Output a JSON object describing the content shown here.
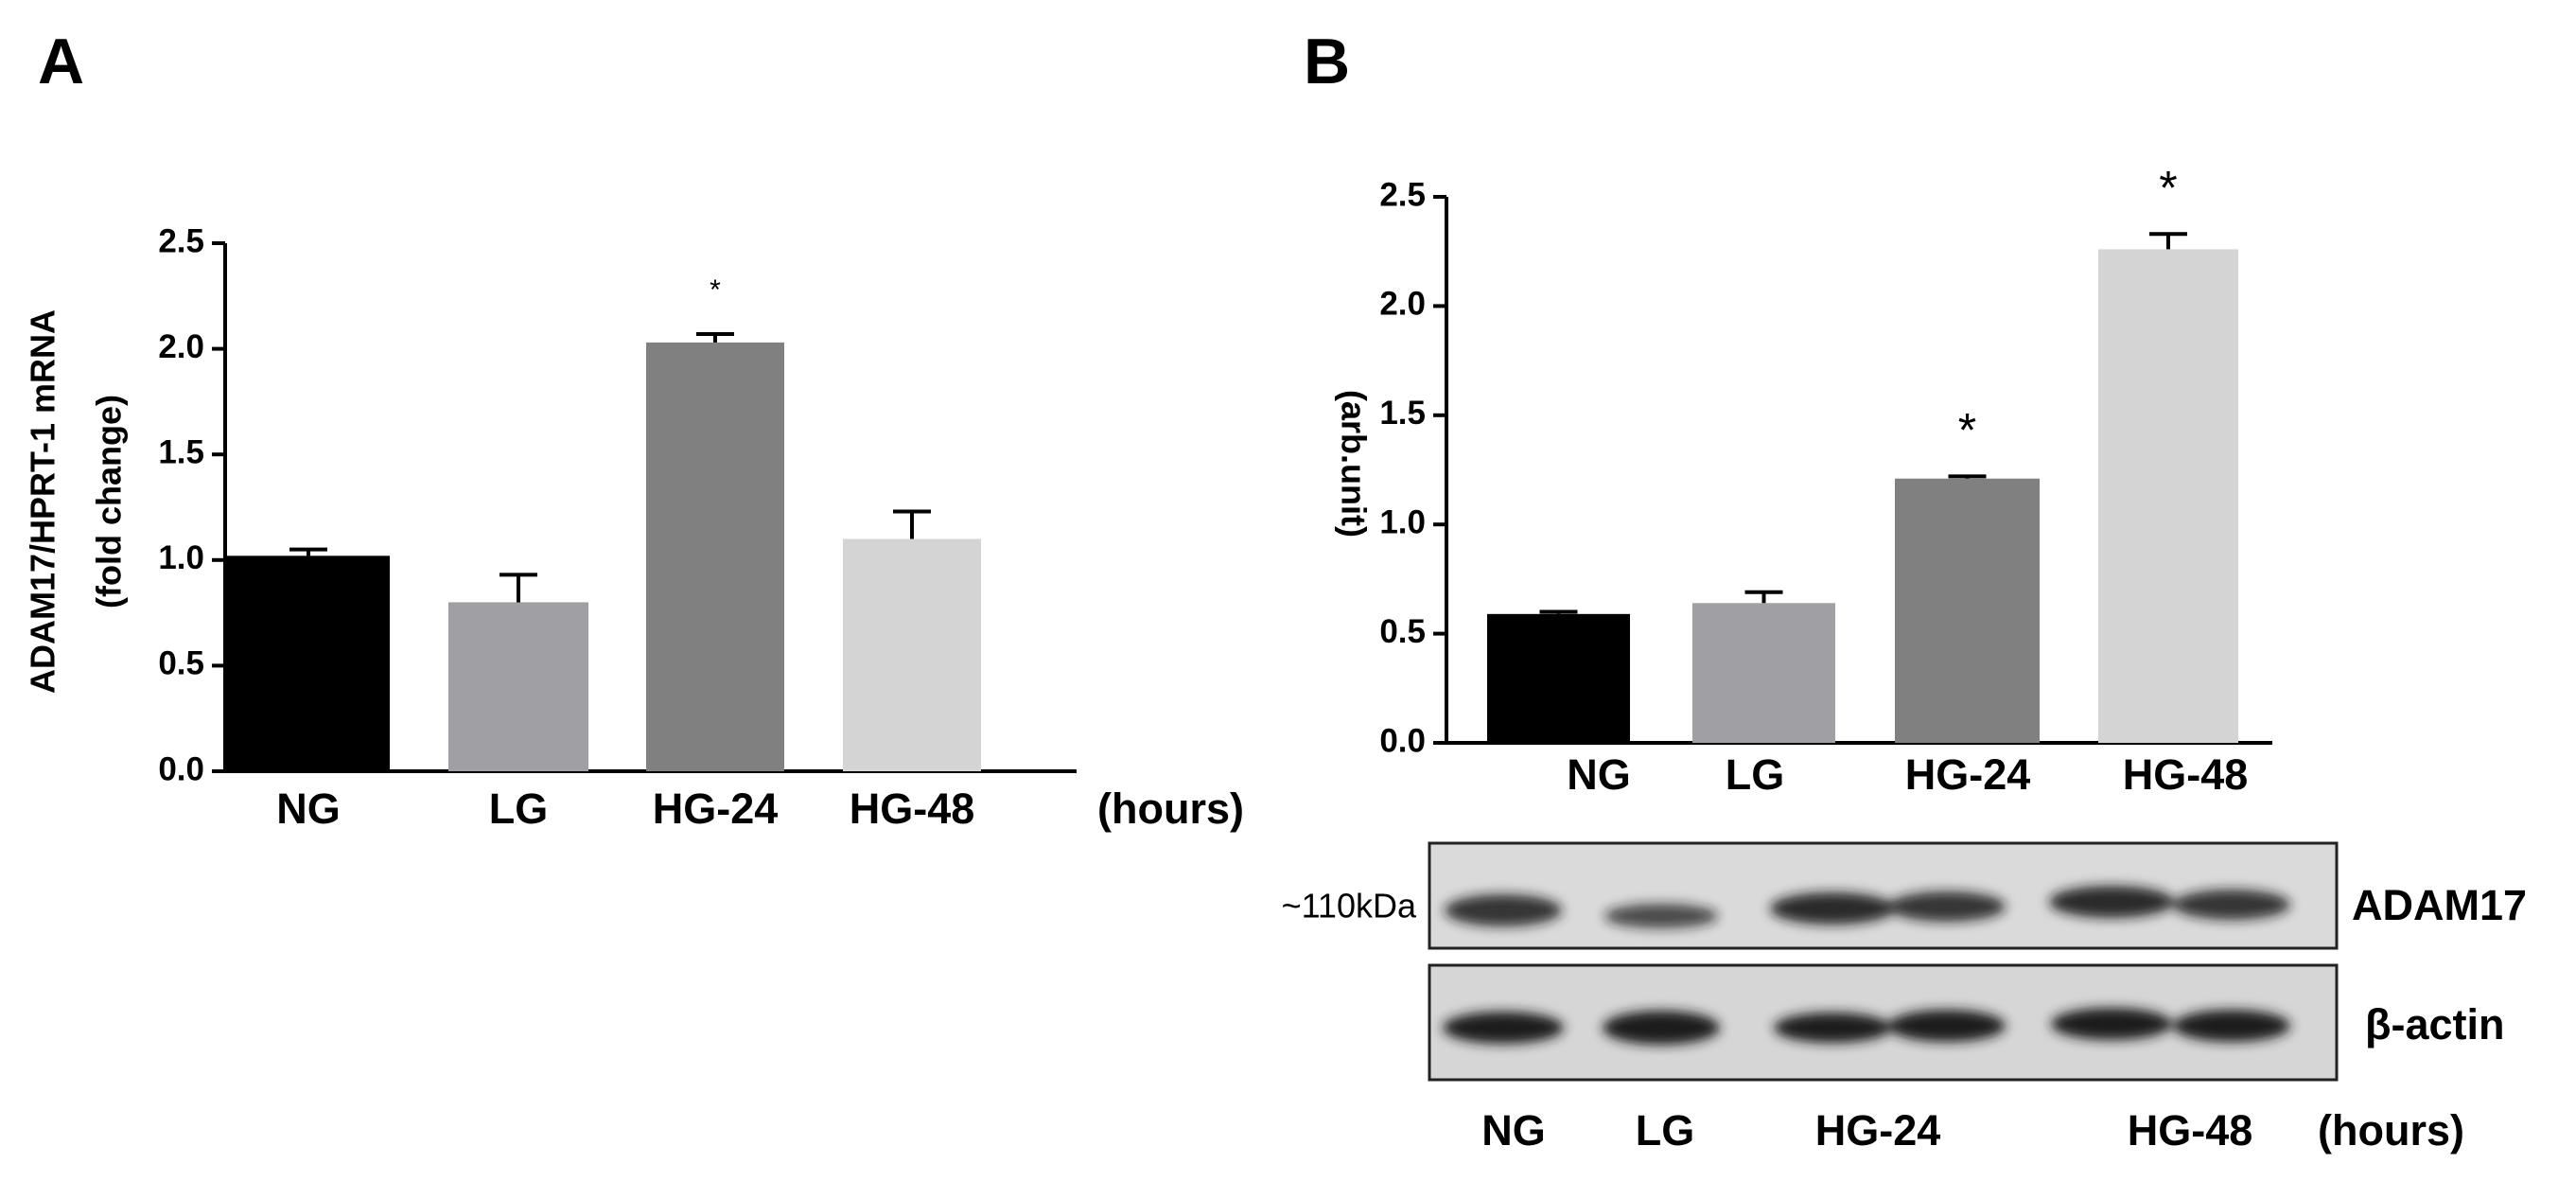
{
  "chart_data": [
    {
      "type": "bar",
      "panel": "A",
      "ylabel": [
        "ADAM17/HPRT-1 mRNA",
        "(fold change)"
      ],
      "xlabel": "(hours)",
      "categories": [
        "NG",
        "LG",
        "HG-24",
        "HG-48"
      ],
      "values": [
        1.02,
        0.8,
        2.03,
        1.1
      ],
      "errors": [
        0.03,
        0.13,
        0.04,
        0.13
      ],
      "colors": [
        "#000000",
        "#a0a0a4",
        "#808080",
        "#d4d4d4"
      ],
      "annotations": [
        {
          "category": "HG-24",
          "text": "*"
        }
      ],
      "ylim": [
        0,
        2.5
      ],
      "yticks": [
        {
          "value": 0,
          "label": "0.0"
        },
        0.5,
        {
          "value": 1,
          "label": "1.0"
        },
        1.5,
        {
          "value": 2,
          "label": "2.0"
        },
        2.5
      ]
    },
    {
      "type": "bar",
      "panel": "B",
      "ylabel": [
        "(arb.unit)"
      ],
      "categories": [
        "NG",
        "LG",
        "HG-24",
        "HG-48"
      ],
      "values": [
        0.59,
        0.64,
        1.21,
        2.26
      ],
      "errors": [
        0.01,
        0.05,
        0.01,
        0.07
      ],
      "colors": [
        "#000000",
        "#a0a0a4",
        "#808080",
        "#d4d4d4"
      ],
      "annotations": [
        {
          "category": "HG-24",
          "text": "*"
        },
        {
          "category": "HG-48",
          "text": "*"
        }
      ],
      "ylim": [
        0,
        2.5
      ],
      "yticks": [
        {
          "value": 0,
          "label": "0.0"
        },
        0.5,
        {
          "value": 1,
          "label": "1.0"
        },
        1.5,
        {
          "value": 2,
          "label": "2.0"
        },
        2.5
      ]
    }
  ],
  "blot": {
    "marker": "~110kDa",
    "rows": [
      "ADAM17",
      "β-actin"
    ],
    "lanes": [
      "NG",
      "LG",
      "HG-24",
      "HG-48"
    ],
    "lane_unit": "(hours)"
  }
}
